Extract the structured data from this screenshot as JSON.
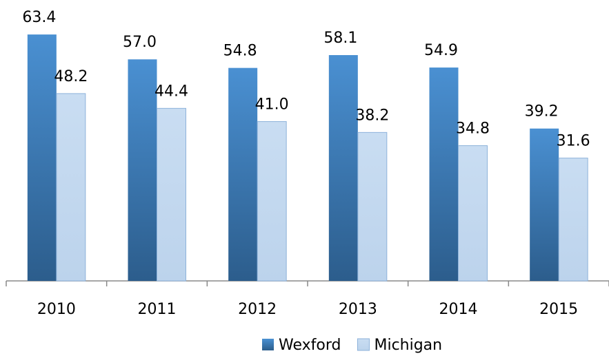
{
  "chart_data": {
    "type": "bar",
    "categories": [
      "2010",
      "2011",
      "2012",
      "2013",
      "2014",
      "2015"
    ],
    "series": [
      {
        "name": "Wexford",
        "color": "#3b7bbf",
        "values": [
          63.4,
          57.0,
          54.8,
          58.1,
          54.9,
          39.2
        ],
        "value_labels": [
          "63.4",
          "57.0",
          "54.8",
          "58.1",
          "54.9",
          "39.2"
        ]
      },
      {
        "name": "Michigan",
        "color": "#c3d8ef",
        "values": [
          48.2,
          44.4,
          41.0,
          38.2,
          34.8,
          31.6
        ],
        "value_labels": [
          "48.2",
          "44.4",
          "41.0",
          "38.2",
          "34.8",
          "31.6"
        ]
      }
    ],
    "legend": "bottom"
  }
}
